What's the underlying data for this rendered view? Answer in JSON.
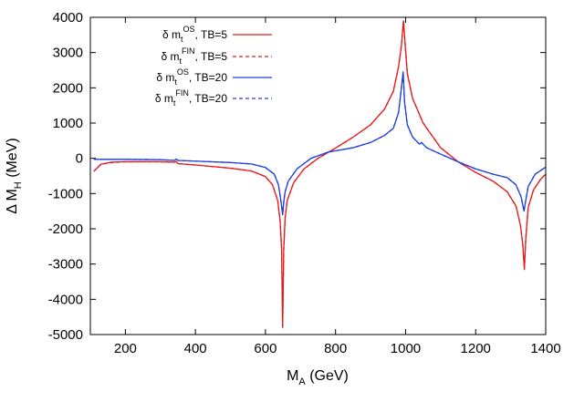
{
  "chart_data": {
    "type": "line",
    "xlabel": {
      "main": "M",
      "sub": "A",
      "rest": " (GeV)"
    },
    "ylabel": {
      "main": "Δ M",
      "sub": "H",
      "rest": " (MeV)"
    },
    "xlim": [
      100,
      1400
    ],
    "ylim": [
      -5000,
      4000
    ],
    "xticks": [
      200,
      400,
      600,
      800,
      1000,
      1200,
      1400
    ],
    "yticks": [
      -5000,
      -4000,
      -3000,
      -2000,
      -1000,
      0,
      1000,
      2000,
      3000,
      4000
    ],
    "grid": false,
    "legend_position": "top-left",
    "series": [
      {
        "name": {
          "pre": "δ m",
          "sub": "t",
          "sup": "OS",
          "post": ", TB=5"
        },
        "color": "#e41a1c",
        "dash": "solid",
        "points": [
          [
            110,
            -370
          ],
          [
            130,
            -170
          ],
          [
            160,
            -110
          ],
          [
            200,
            -95
          ],
          [
            300,
            -100
          ],
          [
            340,
            -110
          ],
          [
            345,
            -90
          ],
          [
            350,
            -150
          ],
          [
            400,
            -190
          ],
          [
            500,
            -280
          ],
          [
            560,
            -360
          ],
          [
            600,
            -520
          ],
          [
            620,
            -750
          ],
          [
            635,
            -1200
          ],
          [
            642,
            -1800
          ],
          [
            646,
            -2600
          ],
          [
            649,
            -4800
          ],
          [
            652,
            -2600
          ],
          [
            656,
            -1700
          ],
          [
            662,
            -1200
          ],
          [
            680,
            -700
          ],
          [
            710,
            -300
          ],
          [
            750,
            0
          ],
          [
            800,
            290
          ],
          [
            850,
            600
          ],
          [
            900,
            950
          ],
          [
            940,
            1400
          ],
          [
            965,
            1900
          ],
          [
            980,
            2600
          ],
          [
            988,
            3200
          ],
          [
            994,
            3900
          ],
          [
            999,
            3200
          ],
          [
            1005,
            2400
          ],
          [
            1020,
            1700
          ],
          [
            1050,
            1000
          ],
          [
            1100,
            300
          ],
          [
            1150,
            -100
          ],
          [
            1200,
            -400
          ],
          [
            1250,
            -650
          ],
          [
            1290,
            -950
          ],
          [
            1315,
            -1350
          ],
          [
            1328,
            -1900
          ],
          [
            1335,
            -2500
          ],
          [
            1339,
            -3150
          ],
          [
            1343,
            -2300
          ],
          [
            1350,
            -1400
          ],
          [
            1365,
            -900
          ],
          [
            1385,
            -600
          ],
          [
            1400,
            -450
          ]
        ]
      },
      {
        "name": {
          "pre": "δ m",
          "sub": "t",
          "sup": "FIN",
          "post": ", TB=5"
        },
        "color": "#e41a1c",
        "dash": "dashed",
        "points": [
          [
            110,
            -370
          ],
          [
            130,
            -170
          ],
          [
            160,
            -120
          ],
          [
            200,
            -100
          ],
          [
            300,
            -100
          ],
          [
            340,
            -110
          ],
          [
            345,
            -90
          ],
          [
            350,
            -150
          ],
          [
            400,
            -190
          ],
          [
            500,
            -280
          ],
          [
            560,
            -360
          ],
          [
            600,
            -520
          ],
          [
            620,
            -750
          ],
          [
            635,
            -1200
          ],
          [
            642,
            -1800
          ],
          [
            646,
            -2600
          ],
          [
            649,
            -4800
          ],
          [
            652,
            -2600
          ],
          [
            656,
            -1700
          ],
          [
            662,
            -1200
          ],
          [
            680,
            -700
          ],
          [
            710,
            -300
          ],
          [
            750,
            0
          ],
          [
            800,
            290
          ],
          [
            850,
            600
          ],
          [
            900,
            950
          ],
          [
            940,
            1400
          ],
          [
            965,
            1900
          ],
          [
            980,
            2600
          ],
          [
            988,
            3200
          ],
          [
            994,
            3900
          ],
          [
            999,
            3200
          ],
          [
            1005,
            2400
          ],
          [
            1020,
            1700
          ],
          [
            1050,
            1000
          ],
          [
            1100,
            300
          ],
          [
            1150,
            -100
          ],
          [
            1200,
            -400
          ],
          [
            1250,
            -650
          ],
          [
            1290,
            -950
          ],
          [
            1315,
            -1350
          ],
          [
            1328,
            -1900
          ],
          [
            1335,
            -2500
          ],
          [
            1339,
            -3150
          ],
          [
            1343,
            -2300
          ],
          [
            1350,
            -1400
          ],
          [
            1365,
            -900
          ],
          [
            1385,
            -600
          ],
          [
            1400,
            -450
          ]
        ]
      },
      {
        "name": {
          "pre": "δ m",
          "sub": "t",
          "sup": "OS",
          "post": ", TB=20"
        },
        "color": "#1f3fe0",
        "dash": "solid",
        "points": [
          [
            110,
            -30
          ],
          [
            150,
            -30
          ],
          [
            200,
            -30
          ],
          [
            300,
            -40
          ],
          [
            340,
            -60
          ],
          [
            345,
            -20
          ],
          [
            350,
            -60
          ],
          [
            400,
            -80
          ],
          [
            500,
            -120
          ],
          [
            560,
            -160
          ],
          [
            600,
            -260
          ],
          [
            625,
            -450
          ],
          [
            637,
            -750
          ],
          [
            644,
            -1200
          ],
          [
            649,
            -1600
          ],
          [
            652,
            -1250
          ],
          [
            656,
            -950
          ],
          [
            665,
            -650
          ],
          [
            690,
            -300
          ],
          [
            730,
            0
          ],
          [
            780,
            180
          ],
          [
            850,
            300
          ],
          [
            900,
            450
          ],
          [
            940,
            650
          ],
          [
            965,
            850
          ],
          [
            980,
            1300
          ],
          [
            988,
            2000
          ],
          [
            993,
            2450
          ],
          [
            997,
            1600
          ],
          [
            1005,
            950
          ],
          [
            1020,
            600
          ],
          [
            1040,
            400
          ],
          [
            1045,
            450
          ],
          [
            1060,
            300
          ],
          [
            1100,
            120
          ],
          [
            1150,
            -100
          ],
          [
            1200,
            -300
          ],
          [
            1250,
            -450
          ],
          [
            1290,
            -550
          ],
          [
            1315,
            -750
          ],
          [
            1330,
            -1100
          ],
          [
            1338,
            -1500
          ],
          [
            1343,
            -1200
          ],
          [
            1350,
            -800
          ],
          [
            1370,
            -450
          ],
          [
            1400,
            -250
          ]
        ]
      },
      {
        "name": {
          "pre": "δ m",
          "sub": "t",
          "sup": "FIN",
          "post": ", TB=20"
        },
        "color": "#1f3fe0",
        "dash": "dashed",
        "points": [
          [
            110,
            -30
          ],
          [
            150,
            -30
          ],
          [
            200,
            -30
          ],
          [
            300,
            -40
          ],
          [
            340,
            -60
          ],
          [
            345,
            -20
          ],
          [
            350,
            -60
          ],
          [
            400,
            -80
          ],
          [
            500,
            -120
          ],
          [
            560,
            -160
          ],
          [
            600,
            -260
          ],
          [
            625,
            -450
          ],
          [
            637,
            -750
          ],
          [
            644,
            -1200
          ],
          [
            649,
            -1600
          ],
          [
            652,
            -1250
          ],
          [
            656,
            -950
          ],
          [
            665,
            -650
          ],
          [
            690,
            -300
          ],
          [
            730,
            0
          ],
          [
            780,
            180
          ],
          [
            850,
            300
          ],
          [
            900,
            450
          ],
          [
            940,
            650
          ],
          [
            965,
            850
          ],
          [
            980,
            1300
          ],
          [
            988,
            2000
          ],
          [
            993,
            2450
          ],
          [
            997,
            1600
          ],
          [
            1005,
            950
          ],
          [
            1020,
            600
          ],
          [
            1040,
            400
          ],
          [
            1045,
            450
          ],
          [
            1060,
            300
          ],
          [
            1100,
            120
          ],
          [
            1150,
            -100
          ],
          [
            1200,
            -300
          ],
          [
            1250,
            -450
          ],
          [
            1290,
            -550
          ],
          [
            1315,
            -750
          ],
          [
            1330,
            -1100
          ],
          [
            1338,
            -1500
          ],
          [
            1343,
            -1200
          ],
          [
            1350,
            -800
          ],
          [
            1370,
            -450
          ],
          [
            1400,
            -250
          ]
        ]
      }
    ]
  }
}
